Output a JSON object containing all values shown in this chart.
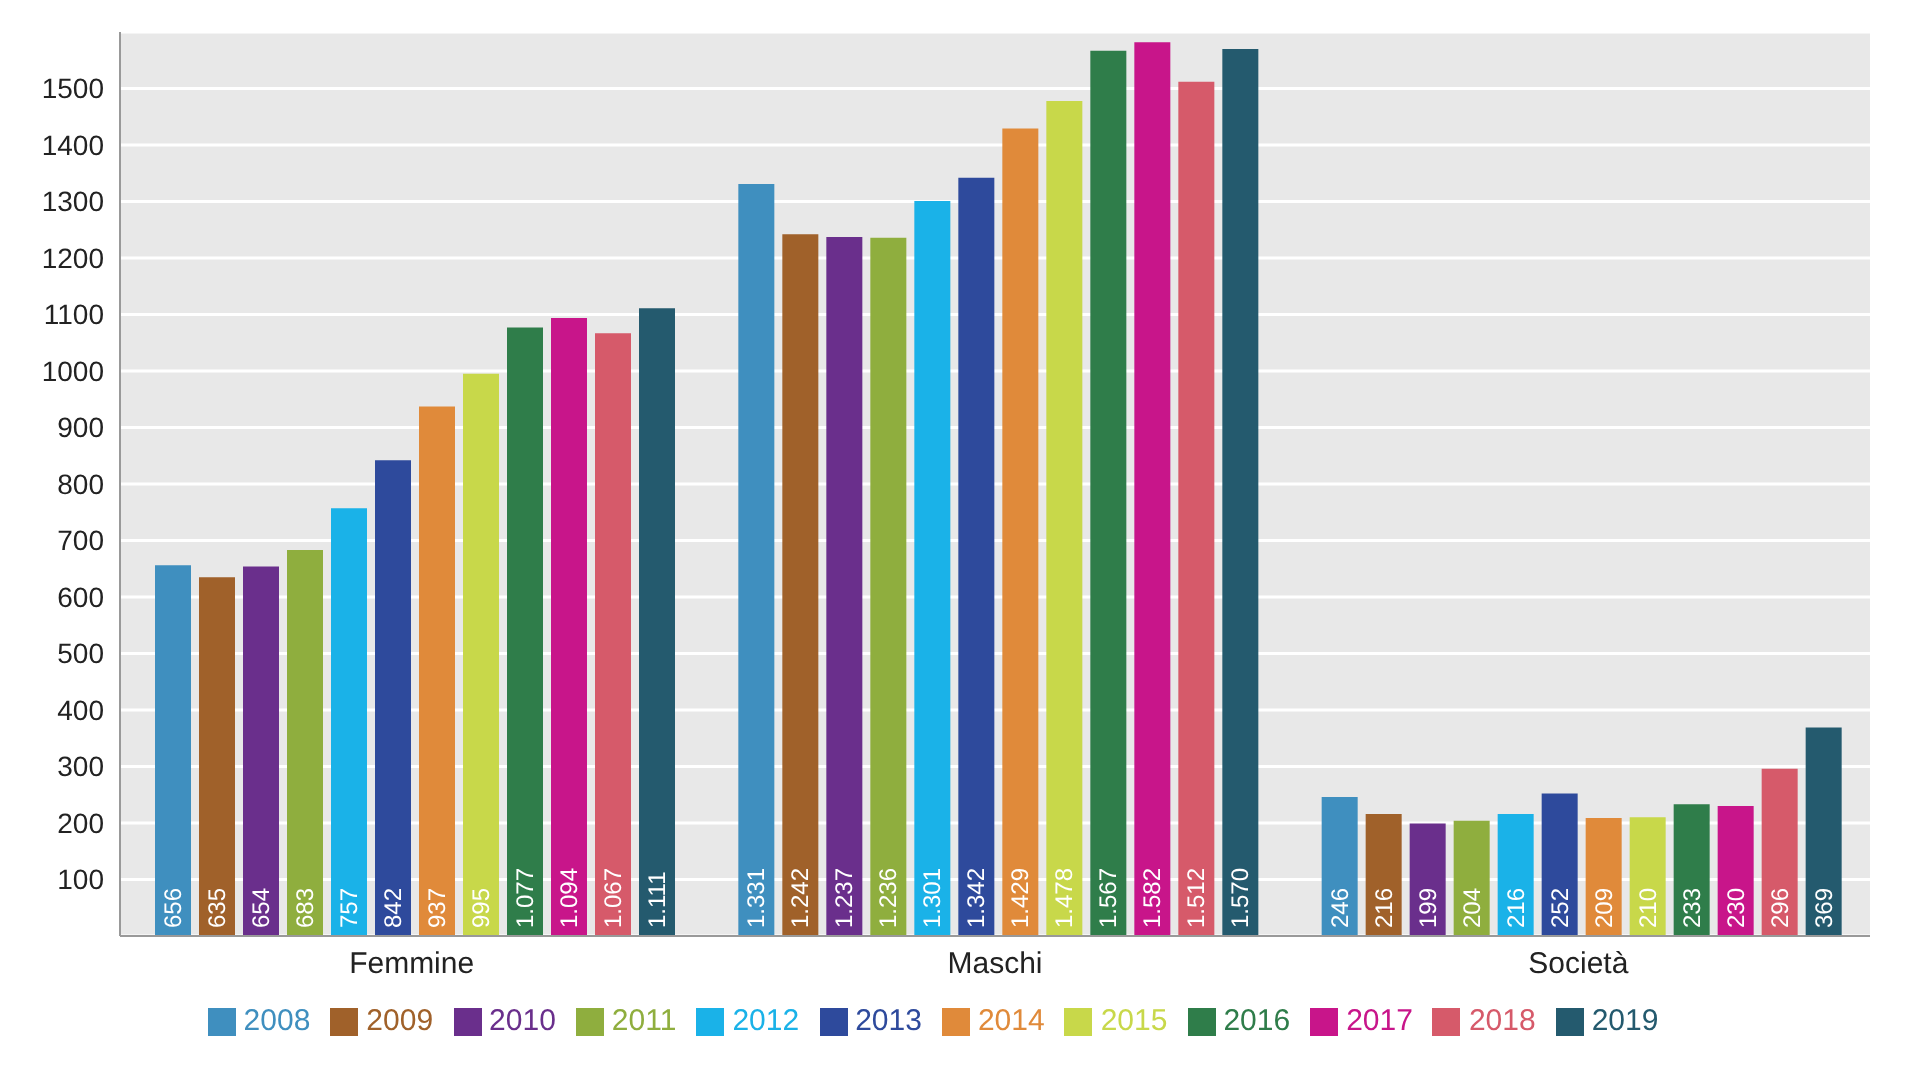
{
  "chart_data": {
    "type": "bar",
    "categories": [
      "Femmine",
      "Maschi",
      "Società"
    ],
    "series": [
      {
        "name": "2008",
        "color": "#3f8fbf",
        "values": [
          656,
          1331,
          246
        ],
        "value_labels": [
          "656",
          "1.331",
          "246"
        ]
      },
      {
        "name": "2009",
        "color": "#a0612a",
        "values": [
          635,
          1242,
          216
        ],
        "value_labels": [
          "635",
          "1.242",
          "216"
        ]
      },
      {
        "name": "2010",
        "color": "#6a2f8c",
        "values": [
          654,
          1237,
          199
        ],
        "value_labels": [
          "654",
          "1.237",
          "199"
        ]
      },
      {
        "name": "2011",
        "color": "#8fae3e",
        "values": [
          683,
          1236,
          204
        ],
        "value_labels": [
          "683",
          "1.236",
          "204"
        ]
      },
      {
        "name": "2012",
        "color": "#1ab2e8",
        "values": [
          757,
          1301,
          216
        ],
        "value_labels": [
          "757",
          "1.301",
          "216"
        ]
      },
      {
        "name": "2013",
        "color": "#2e4a9c",
        "values": [
          842,
          1342,
          252
        ],
        "value_labels": [
          "842",
          "1.342",
          "252"
        ]
      },
      {
        "name": "2014",
        "color": "#e08a3a",
        "values": [
          937,
          1429,
          209
        ],
        "value_labels": [
          "937",
          "1.429",
          "209"
        ]
      },
      {
        "name": "2015",
        "color": "#c8d84a",
        "values": [
          995,
          1478,
          210
        ],
        "value_labels": [
          "995",
          "1.478",
          "210"
        ]
      },
      {
        "name": "2016",
        "color": "#2f7d4a",
        "values": [
          1077,
          1567,
          233
        ],
        "value_labels": [
          "1.077",
          "1.567",
          "233"
        ]
      },
      {
        "name": "2017",
        "color": "#c8158a",
        "values": [
          1094,
          1582,
          230
        ],
        "value_labels": [
          "1.094",
          "1.582",
          "230"
        ]
      },
      {
        "name": "2018",
        "color": "#d65a6a",
        "values": [
          1067,
          1512,
          296
        ],
        "value_labels": [
          "1.067",
          "1.512",
          "296"
        ]
      },
      {
        "name": "2019",
        "color": "#245a6e",
        "values": [
          1111,
          1570,
          369
        ],
        "value_labels": [
          "1.111",
          "1.570",
          "369"
        ]
      }
    ],
    "ylim": [
      0,
      1600
    ],
    "yticks": [
      100,
      200,
      300,
      400,
      500,
      600,
      700,
      800,
      900,
      1000,
      1100,
      1200,
      1300,
      1400,
      1500
    ],
    "grid": "y",
    "legend": "bottom"
  }
}
